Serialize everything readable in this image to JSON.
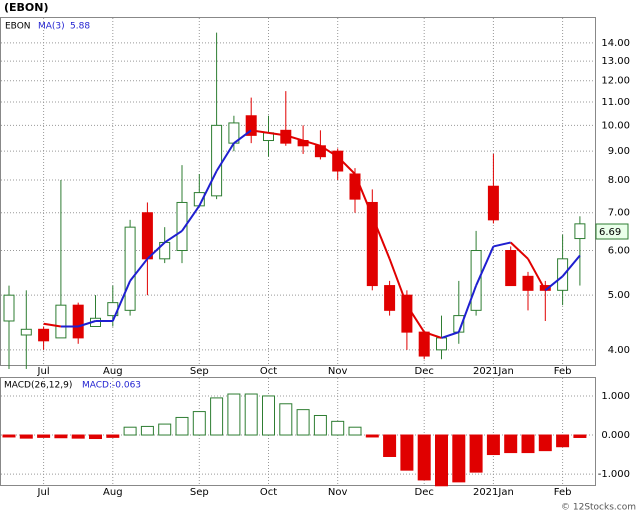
{
  "chart_data": {
    "type": "candlestick",
    "title": "(EBON)",
    "symbol": "EBON",
    "ma_name": "MA(3)",
    "ma_last_label": "5.88",
    "last_price_label": "6.69",
    "watermark": "© 12Stocks.com",
    "log_scale": true,
    "grid": true,
    "up_color": "#2e7d32",
    "down_color": "#e00000",
    "ma_up_color": "#1f1fd0",
    "ma_down_color": "#e00000",
    "categories": [
      null,
      null,
      "Jul",
      null,
      null,
      null,
      "Aug",
      null,
      null,
      null,
      null,
      "Sep",
      null,
      null,
      null,
      "Oct",
      null,
      null,
      null,
      "Nov",
      null,
      null,
      null,
      null,
      "Dec",
      null,
      null,
      null,
      "2021Jan",
      null,
      null,
      null,
      "Feb",
      null
    ],
    "open": [
      4.5,
      4.25,
      4.35,
      4.2,
      4.8,
      4.4,
      4.6,
      4.7,
      7.0,
      5.8,
      6.0,
      7.2,
      7.5,
      9.3,
      10.4,
      9.4,
      9.8,
      9.4,
      9.2,
      9.0,
      8.2,
      7.3,
      5.2,
      5.0,
      4.3,
      4.0,
      4.3,
      4.7,
      7.8,
      6.0,
      5.4,
      5.2,
      5.1,
      6.3
    ],
    "high": [
      5.2,
      5.1,
      4.4,
      8.0,
      4.85,
      5.0,
      5.2,
      6.8,
      7.3,
      6.6,
      8.5,
      8.2,
      14.6,
      10.4,
      11.2,
      10.4,
      11.5,
      10.0,
      9.8,
      9.1,
      8.4,
      7.7,
      5.3,
      5.1,
      4.3,
      4.6,
      5.3,
      6.5,
      8.9,
      6.1,
      5.5,
      5.3,
      6.4,
      6.9
    ],
    "low": [
      3.7,
      3.7,
      4.0,
      4.2,
      4.1,
      4.4,
      4.4,
      4.6,
      5.0,
      5.7,
      5.7,
      7.2,
      7.4,
      9.0,
      9.3,
      8.8,
      9.2,
      8.9,
      8.7,
      8.0,
      7.0,
      5.1,
      4.6,
      4.0,
      3.85,
      3.85,
      4.1,
      4.6,
      6.7,
      5.2,
      4.7,
      4.5,
      4.8,
      5.2
    ],
    "close": [
      5.0,
      4.35,
      4.15,
      4.8,
      4.2,
      4.55,
      4.85,
      6.6,
      5.8,
      6.2,
      7.3,
      7.6,
      10.0,
      10.1,
      9.6,
      9.7,
      9.3,
      9.2,
      8.8,
      8.3,
      7.4,
      5.2,
      4.7,
      4.3,
      3.9,
      4.2,
      4.6,
      6.0,
      6.8,
      5.2,
      5.1,
      5.1,
      5.8,
      6.69
    ],
    "ma": [
      null,
      null,
      4.45,
      4.4,
      4.4,
      4.5,
      4.5,
      5.3,
      5.8,
      6.2,
      6.5,
      7.2,
      8.3,
      9.3,
      9.8,
      9.7,
      9.6,
      9.4,
      9.2,
      8.8,
      8.2,
      6.9,
      5.8,
      4.8,
      4.3,
      4.2,
      4.3,
      5.2,
      6.1,
      6.2,
      5.8,
      5.1,
      5.4,
      5.88
    ],
    "ylim": [
      3.76,
      15.5
    ],
    "yticks": [
      {
        "value": 4,
        "label": "4.00"
      },
      {
        "value": 5,
        "label": "5.00"
      },
      {
        "value": 6,
        "label": "6.00"
      },
      {
        "value": 7,
        "label": "7.00"
      },
      {
        "value": 8,
        "label": "8.00"
      },
      {
        "value": 9,
        "label": "9.00"
      },
      {
        "value": 10,
        "label": "10.00"
      },
      {
        "value": 11,
        "label": "11.00"
      },
      {
        "value": 12,
        "label": "12.00"
      },
      {
        "value": 13,
        "label": "13.00"
      },
      {
        "value": 14,
        "label": "14.00"
      }
    ],
    "macd_title": "MACD(26,12,9)",
    "macd_label": "MACD:-0.063",
    "macd": [
      -0.05,
      -0.08,
      -0.06,
      -0.07,
      -0.08,
      -0.09,
      -0.06,
      0.2,
      0.22,
      0.28,
      0.45,
      0.6,
      0.95,
      1.05,
      1.05,
      1.0,
      0.8,
      0.65,
      0.5,
      0.35,
      0.2,
      -0.05,
      -0.55,
      -0.9,
      -1.15,
      -1.3,
      -1.2,
      -0.95,
      -0.5,
      -0.45,
      -0.45,
      -0.4,
      -0.3,
      -0.063
    ],
    "macd_ylim": [
      -1.28,
      1.46
    ],
    "macd_yticks": [
      {
        "value": 1,
        "label": "1.000"
      },
      {
        "value": 0,
        "label": "0.000"
      },
      {
        "value": -1,
        "label": "-1.000"
      }
    ]
  }
}
